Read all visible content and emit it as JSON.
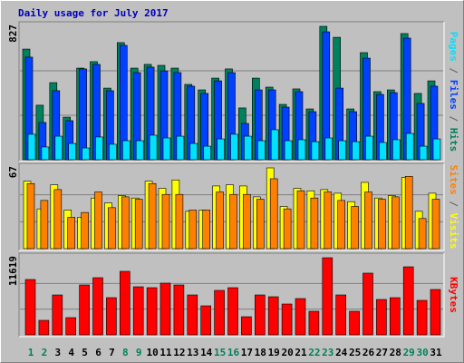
{
  "chart_data": [
    {
      "type": "bar",
      "title": "Daily usage for July 2017",
      "ylim": [
        0,
        827
      ],
      "yticks": [
        827
      ],
      "series": [
        {
          "name": "Hits",
          "color": "#00805c",
          "values": [
            686,
            338,
            478,
            264,
            568,
            608,
            444,
            726,
            568,
            591,
            585,
            568,
            467,
            433,
            506,
            563,
            321,
            506,
            450,
            343,
            439,
            315,
            827,
            759,
            315,
            664,
            422,
            433,
            782,
            411,
            489
          ]
        },
        {
          "name": "Files",
          "color": "#0040ff",
          "values": [
            636,
            231,
            428,
            242,
            563,
            591,
            428,
            709,
            540,
            574,
            551,
            540,
            456,
            411,
            489,
            540,
            225,
            433,
            433,
            326,
            422,
            298,
            793,
            444,
            298,
            630,
            405,
            416,
            754,
            349,
            456
          ]
        },
        {
          "name": "Pages",
          "color": "#00e0ff",
          "values": [
            158,
            79,
            146,
            101,
            73,
            141,
            96,
            118,
            118,
            152,
            135,
            146,
            101,
            84,
            129,
            158,
            146,
            118,
            186,
            118,
            124,
            112,
            135,
            118,
            112,
            146,
            107,
            124,
            163,
            84,
            129
          ]
        }
      ]
    },
    {
      "type": "bar",
      "ylim": [
        0,
        67
      ],
      "yticks": [
        67
      ],
      "series": [
        {
          "name": "Visits",
          "color": "#ffff00",
          "values": [
            56,
            33,
            53,
            32,
            26,
            42,
            38,
            44,
            42,
            56,
            50,
            57,
            31,
            32,
            52,
            53,
            52,
            43,
            67,
            35,
            50,
            48,
            49,
            46,
            39,
            55,
            42,
            44,
            59,
            31,
            46
          ]
        },
        {
          "name": "Sites",
          "color": "#ff8000",
          "values": [
            54,
            40,
            49,
            26,
            30,
            47,
            34,
            43,
            41,
            54,
            45,
            45,
            32,
            32,
            47,
            45,
            45,
            41,
            58,
            33,
            48,
            42,
            47,
            40,
            35,
            47,
            41,
            43,
            60,
            25,
            41
          ]
        }
      ]
    },
    {
      "type": "bar",
      "ylim": [
        0,
        11619
      ],
      "yticks": [
        11619
      ],
      "categories": [
        "1",
        "2",
        "3",
        "4",
        "5",
        "6",
        "7",
        "8",
        "9",
        "10",
        "11",
        "12",
        "13",
        "14",
        "15",
        "16",
        "17",
        "18",
        "19",
        "20",
        "21",
        "22",
        "23",
        "24",
        "25",
        "26",
        "27",
        "28",
        "29",
        "30",
        "31"
      ],
      "category_colors": [
        "#00805c",
        "#00805c",
        "#000000",
        "#000000",
        "#000000",
        "#000000",
        "#000000",
        "#00805c",
        "#00805c",
        "#000000",
        "#000000",
        "#000000",
        "#000000",
        "#000000",
        "#00805c",
        "#00805c",
        "#000000",
        "#000000",
        "#000000",
        "#000000",
        "#000000",
        "#00805c",
        "#00805c",
        "#000000",
        "#000000",
        "#000000",
        "#000000",
        "#000000",
        "#00805c",
        "#00805c",
        "#000000"
      ],
      "series": [
        {
          "name": "KBytes",
          "color": "#ff0000",
          "values": [
            8339,
            2187,
            6015,
            2597,
            7518,
            8612,
            5605,
            9568,
            7245,
            7108,
            7792,
            7518,
            6015,
            4374,
            6698,
            7108,
            2734,
            6015,
            5741,
            4648,
            5468,
            3554,
            11619,
            6015,
            3554,
            9296,
            5331,
            5605,
            10252,
            5194,
            6835
          ]
        }
      ]
    }
  ]
}
